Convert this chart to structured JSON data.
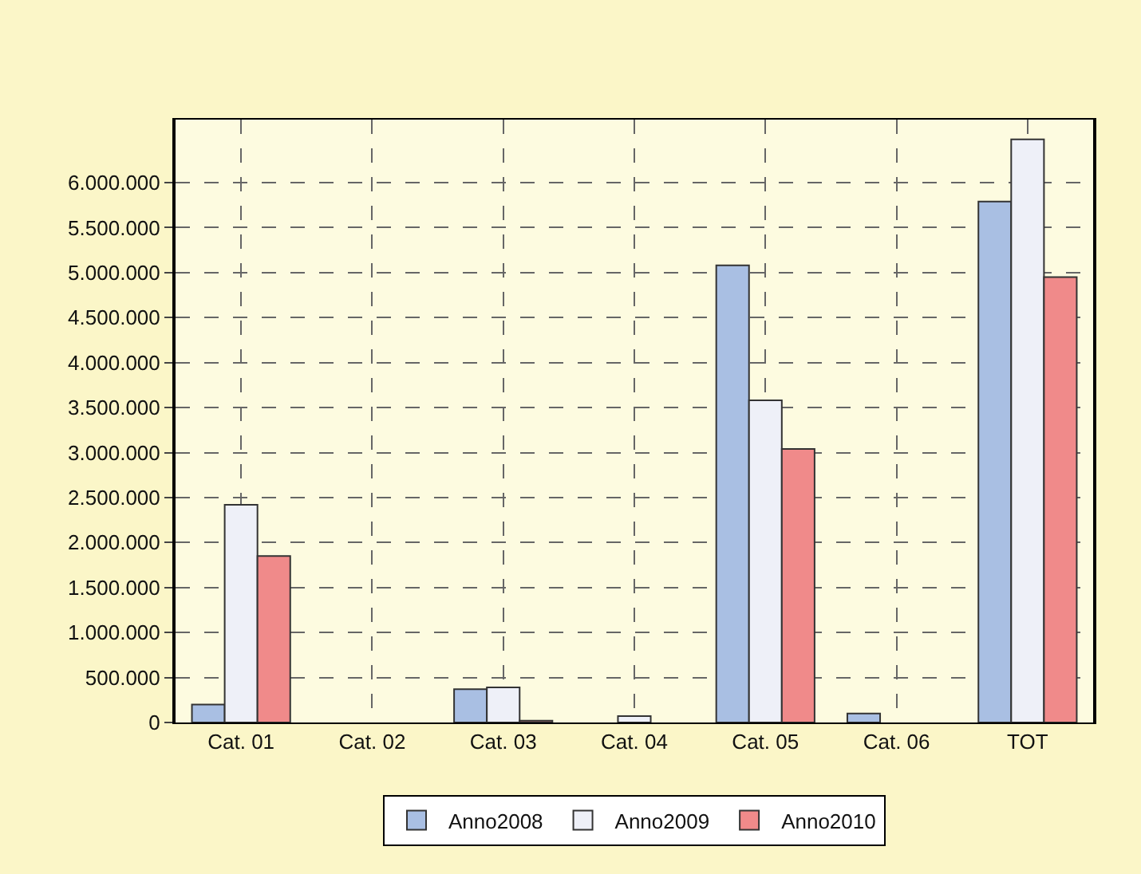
{
  "chart_data": {
    "type": "bar",
    "categories": [
      "Cat. 01",
      "Cat. 02",
      "Cat. 03",
      "Cat. 04",
      "Cat. 05",
      "Cat. 06",
      "TOT"
    ],
    "series": [
      {
        "name": "Anno2008",
        "color": "#a9bfe3",
        "values": [
          200000,
          0,
          370000,
          0,
          5080000,
          100000,
          5790000
        ]
      },
      {
        "name": "Anno2009",
        "color": "#eef0f8",
        "values": [
          2420000,
          0,
          390000,
          70000,
          3580000,
          0,
          6480000
        ]
      },
      {
        "name": "Anno2010",
        "color": "#f08a8a",
        "values": [
          1850000,
          0,
          20000,
          0,
          3040000,
          0,
          4950000
        ]
      }
    ],
    "ylim": [
      0,
      6700000
    ],
    "yticks": [
      {
        "value": 0,
        "label": "0"
      },
      {
        "value": 500000,
        "label": "500.000"
      },
      {
        "value": 1000000,
        "label": "1.000.000"
      },
      {
        "value": 1500000,
        "label": "1.500.000"
      },
      {
        "value": 2000000,
        "label": "2.000.000"
      },
      {
        "value": 2500000,
        "label": "2.500.000"
      },
      {
        "value": 3000000,
        "label": "3.000.000"
      },
      {
        "value": 3500000,
        "label": "3.500.000"
      },
      {
        "value": 4000000,
        "label": "4.000.000"
      },
      {
        "value": 4500000,
        "label": "4.500.000"
      },
      {
        "value": 5000000,
        "label": "5.000.000"
      },
      {
        "value": 5500000,
        "label": "5.500.000"
      },
      {
        "value": 6000000,
        "label": "6.000.000"
      }
    ],
    "grid": true,
    "legend": "bottom"
  }
}
